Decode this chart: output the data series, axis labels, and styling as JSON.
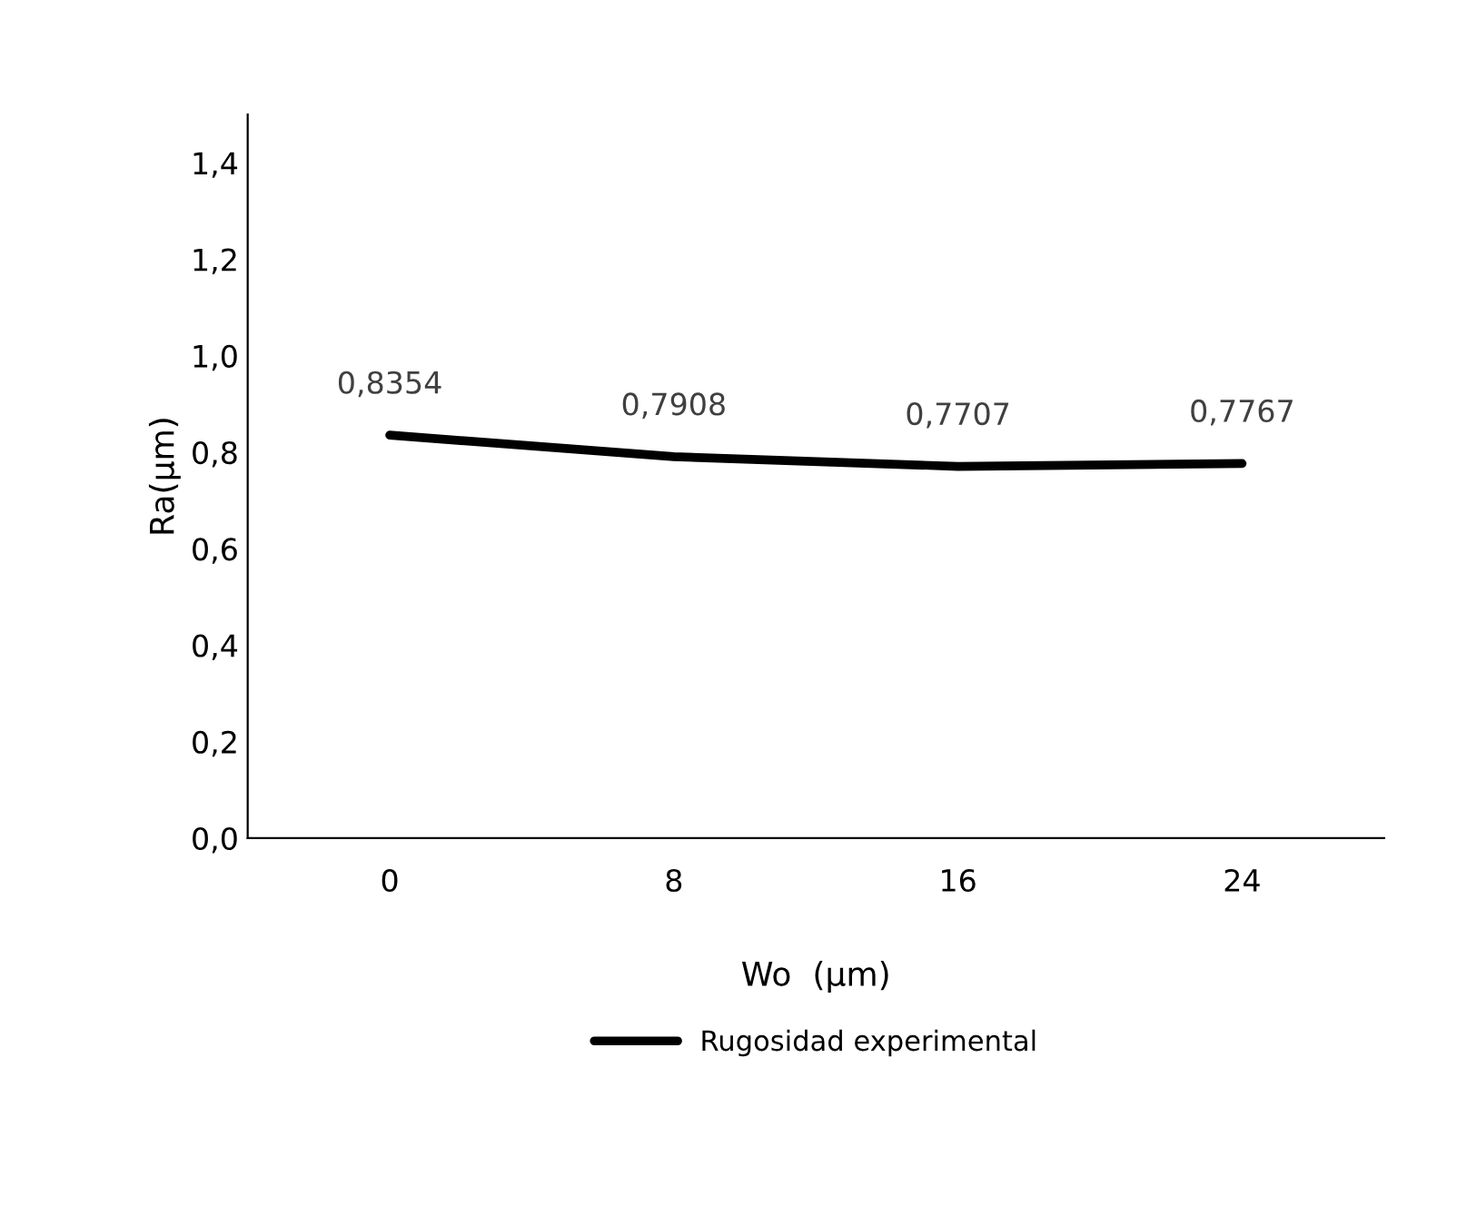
{
  "chart_data": {
    "type": "line",
    "xlabel": "Wo  (μm)",
    "ylabel": "Ra(μm)",
    "categories": [
      "0",
      "8",
      "16",
      "24"
    ],
    "series": [
      {
        "name": "Rugosidad experimental",
        "color": "#000000",
        "values": [
          0.8354,
          0.7908,
          0.7707,
          0.7767
        ],
        "value_labels": [
          "0,8354",
          "0,7908",
          "0,7707",
          "0,7767"
        ]
      }
    ],
    "ylim": [
      0,
      1.5
    ],
    "yticks": [
      {
        "value": 0,
        "label": "0,0"
      },
      {
        "value": 0.2,
        "label": "0,2"
      },
      {
        "value": 0.4,
        "label": "0,4"
      },
      {
        "value": 0.6,
        "label": "0,6"
      },
      {
        "value": 0.8,
        "label": "0,8"
      },
      {
        "value": 1.0,
        "label": "1,0"
      },
      {
        "value": 1.2,
        "label": "1,2"
      },
      {
        "value": 1.4,
        "label": "1,4"
      }
    ],
    "grid": false,
    "legend": "bottom",
    "marker": "none",
    "line_style": "solid"
  }
}
